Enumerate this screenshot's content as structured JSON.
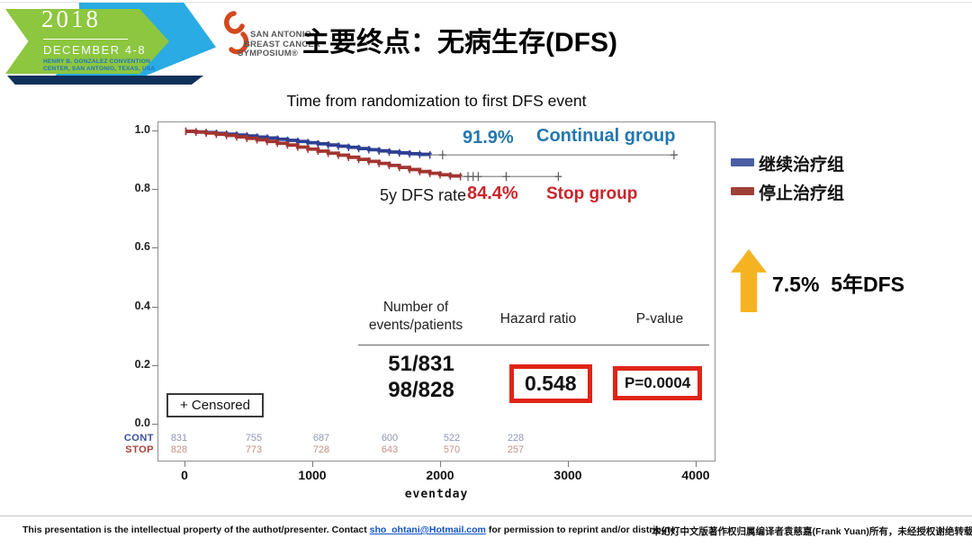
{
  "header": {
    "logo_2018": {
      "year": "2018",
      "dates": "DECEMBER 4-8",
      "venue": "HENRY B. GONZALEZ CONVENTION CENTER, SAN ANTONIO, TEXAS, USA"
    },
    "sabcs_logo": {
      "line1": "SAN ANTONIO",
      "line2": "BREAST CANCER",
      "line3": "SYMPOSIUM®"
    },
    "title": "主要终点：无病生存(DFS)"
  },
  "colors": {
    "continual_curve": "#2e3f93",
    "stop_curve": "#a23430",
    "continual_label": "#2377ae",
    "stop_label": "#c9252b",
    "highlight_arrow": "#f6b321",
    "box_border": "#e02418",
    "link": "#1353c4",
    "ribbon": "#d2491e"
  },
  "chart_data": {
    "type": "line",
    "subtype": "kaplan-meier",
    "title": "Time from randomization to first DFS event",
    "xlabel": "eventday",
    "ylabel": "",
    "xlim": [
      0,
      4150
    ],
    "ylim": [
      0.0,
      1.0
    ],
    "grid": false,
    "x_ticks": [
      0,
      1000,
      2000,
      3000,
      4000
    ],
    "y_ticks": [
      "1.0",
      "0.8",
      "0.6",
      "0.4",
      "0.2",
      "0.0"
    ],
    "series": [
      {
        "name": "Continual group",
        "name_cn": "继续治疗组",
        "color": "#2e3f93",
        "five_year_dfs_rate": "91.9%",
        "events_patients": "51/831",
        "points": [
          [
            0,
            1.0
          ],
          [
            80,
            0.998
          ],
          [
            160,
            0.996
          ],
          [
            240,
            0.993
          ],
          [
            320,
            0.99
          ],
          [
            400,
            0.987
          ],
          [
            480,
            0.984
          ],
          [
            560,
            0.98
          ],
          [
            640,
            0.977
          ],
          [
            720,
            0.973
          ],
          [
            800,
            0.969
          ],
          [
            880,
            0.965
          ],
          [
            960,
            0.961
          ],
          [
            1040,
            0.957
          ],
          [
            1120,
            0.953
          ],
          [
            1200,
            0.949
          ],
          [
            1280,
            0.945
          ],
          [
            1360,
            0.941
          ],
          [
            1440,
            0.937
          ],
          [
            1520,
            0.933
          ],
          [
            1600,
            0.929
          ],
          [
            1680,
            0.926
          ],
          [
            1760,
            0.923
          ],
          [
            1840,
            0.921
          ],
          [
            1920,
            0.919
          ]
        ],
        "tail_end": 3870,
        "tail_censors": [
          2020,
          3840
        ]
      },
      {
        "name": "Stop group",
        "name_cn": "停止治疗组",
        "color": "#a23430",
        "five_year_dfs_rate": "84.4%",
        "events_patients": "98/828",
        "points": [
          [
            0,
            1.0
          ],
          [
            80,
            0.997
          ],
          [
            160,
            0.994
          ],
          [
            240,
            0.99
          ],
          [
            320,
            0.986
          ],
          [
            400,
            0.981
          ],
          [
            480,
            0.976
          ],
          [
            560,
            0.971
          ],
          [
            640,
            0.965
          ],
          [
            720,
            0.959
          ],
          [
            800,
            0.953
          ],
          [
            880,
            0.946
          ],
          [
            960,
            0.939
          ],
          [
            1040,
            0.932
          ],
          [
            1120,
            0.925
          ],
          [
            1200,
            0.918
          ],
          [
            1280,
            0.911
          ],
          [
            1360,
            0.904
          ],
          [
            1440,
            0.897
          ],
          [
            1520,
            0.89
          ],
          [
            1600,
            0.883
          ],
          [
            1680,
            0.876
          ],
          [
            1760,
            0.869
          ],
          [
            1840,
            0.862
          ],
          [
            1920,
            0.856
          ],
          [
            2000,
            0.851
          ],
          [
            2080,
            0.847
          ],
          [
            2160,
            0.845
          ]
        ],
        "tail_end": 2950,
        "tail_censors": [
          2220,
          2260,
          2300,
          2520,
          2930
        ]
      }
    ],
    "annotations": {
      "rate_label": "5y DFS rate",
      "continual_rate": "91.9%",
      "continual_name": "Continual group",
      "stop_rate": "84.4%",
      "stop_name": "Stop group"
    },
    "censored_legend": "+ Censored",
    "stats": {
      "col1_header_line1": "Number of",
      "col1_header_line2": "events/patients",
      "col2_header": "Hazard ratio",
      "col3_header": "P-value",
      "events_continual": "51/831",
      "events_stop": "98/828",
      "hazard_ratio": "0.548",
      "p_value": "P=0.0004"
    },
    "at_risk": {
      "rows": [
        {
          "label": "CONT",
          "label_color": "#3d4f9b",
          "value_color": "#8d96b5",
          "values": [
            "831",
            "755",
            "687",
            "600",
            "522",
            "228"
          ]
        },
        {
          "label": "STOP",
          "label_color": "#aa4036",
          "value_color": "#c49086",
          "values": [
            "828",
            "773",
            "728",
            "643",
            "570",
            "257"
          ]
        }
      ]
    }
  },
  "right_panel": {
    "legend": [
      {
        "label": "继续治疗组",
        "color": "#4a5ea3"
      },
      {
        "label": "停止治疗组",
        "color": "#a04038"
      }
    ],
    "highlight": "7.5%  5年DFS"
  },
  "footer": {
    "left_pre": "This presentation is the intellectual property of the authot/presenter. Contact ",
    "email": "sho_ohtani@Hotmail.com",
    "left_post": " for permission to reprint and/or distribute.",
    "right": "本幻灯中文版著作权归属编译者袁慈嘉(Frank Yuan)所有，未经授权谢绝转载引用"
  }
}
